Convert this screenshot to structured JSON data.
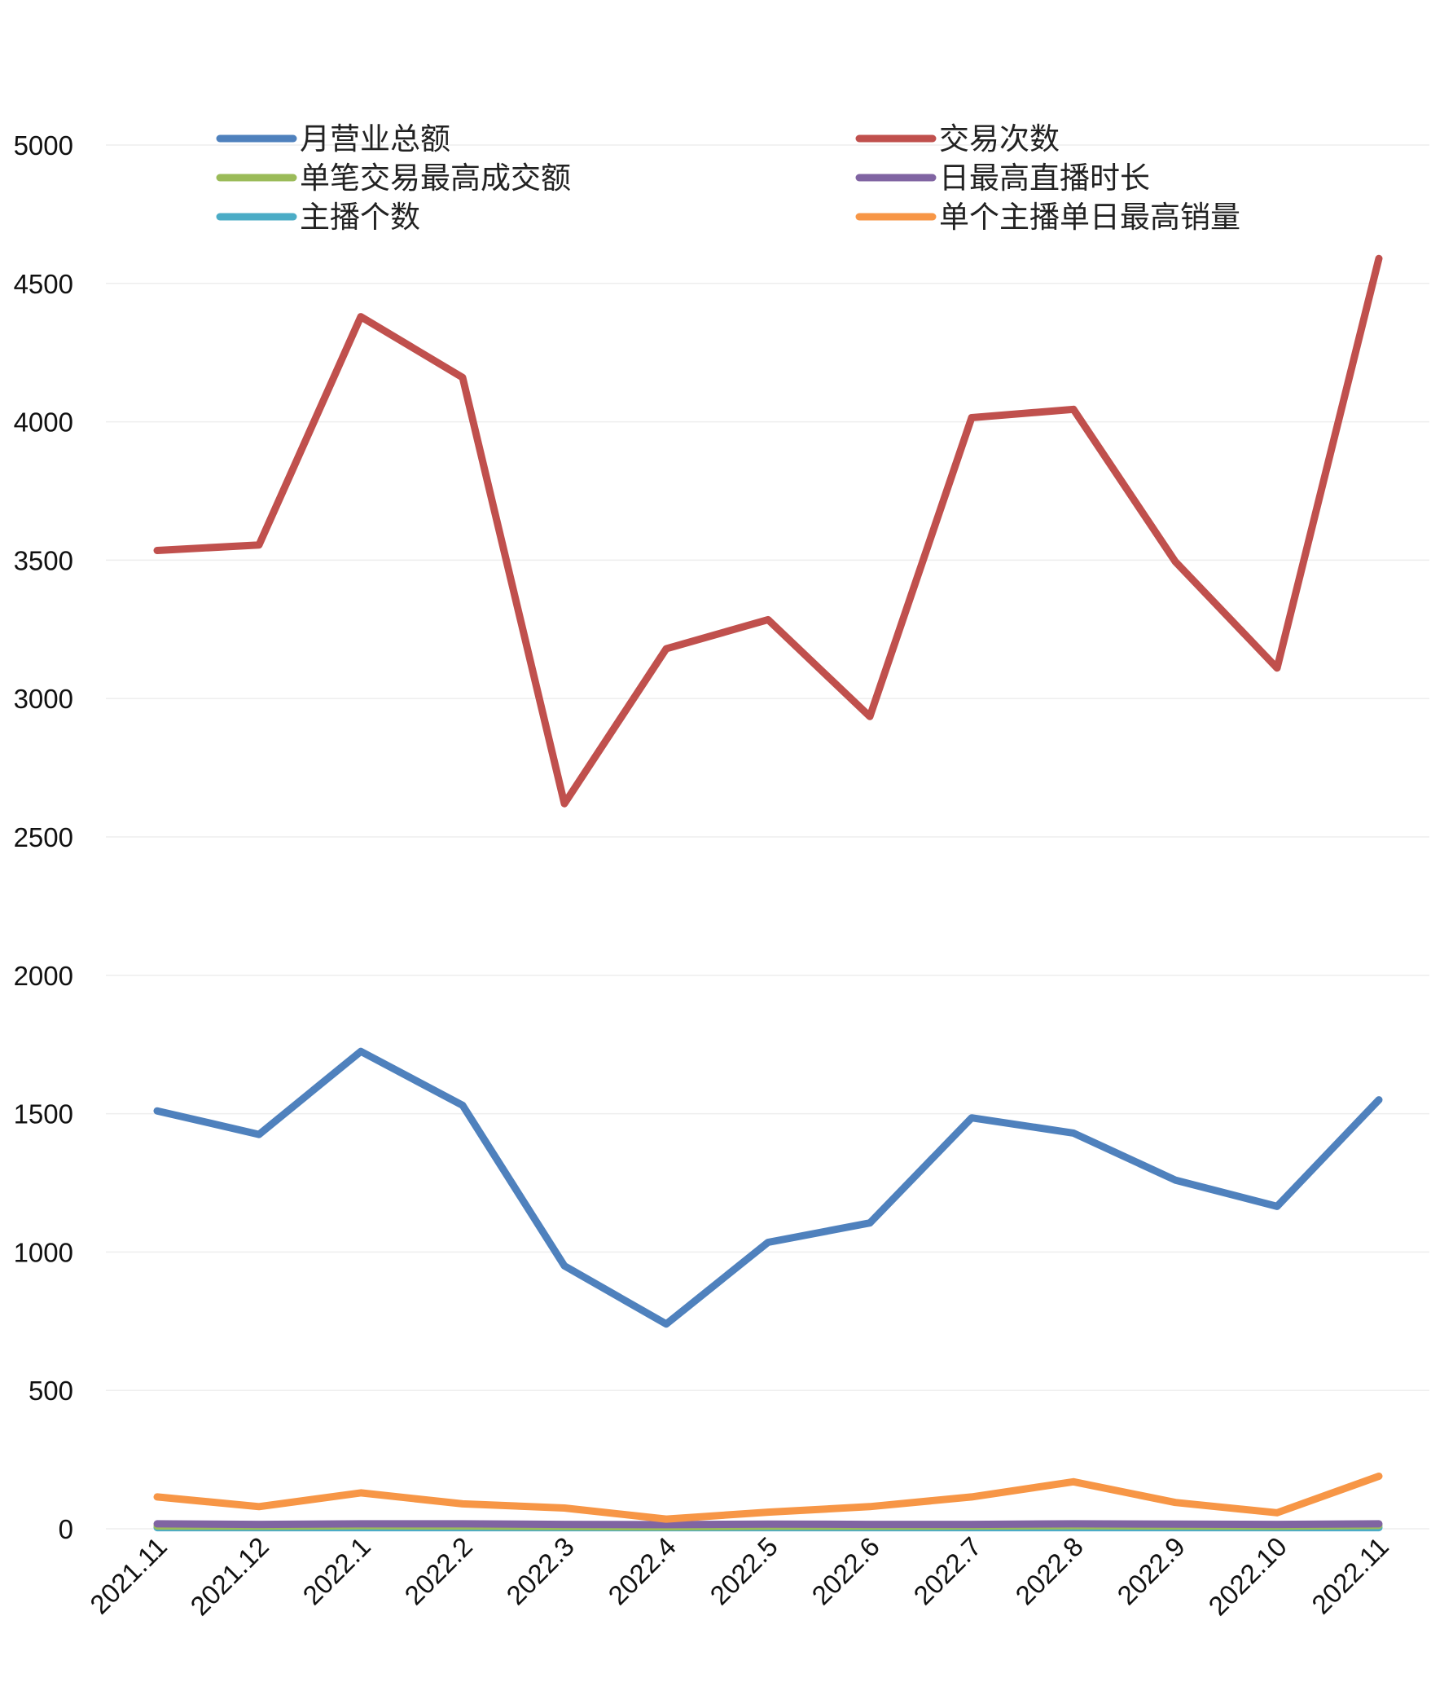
{
  "chart_data": {
    "type": "line",
    "title": "",
    "xlabel": "",
    "ylabel": "",
    "ylim": [
      0,
      5000
    ],
    "yticks": [
      0,
      500,
      1000,
      1500,
      2000,
      2500,
      3000,
      3500,
      4000,
      4500,
      5000
    ],
    "grid": true,
    "legend_position": "top",
    "categories": [
      "2021.11",
      "2021.12",
      "2022.1",
      "2022.2",
      "2022.3",
      "2022.4",
      "2022.5",
      "2022.6",
      "2022.7",
      "2022.8",
      "2022.9",
      "2022.10",
      "2022.11"
    ],
    "series": [
      {
        "name": "月营业总额",
        "color": "#4f81bd",
        "values": [
          1510,
          1425,
          1725,
          1530,
          950,
          740,
          1035,
          1105,
          1485,
          1430,
          1260,
          1165,
          1550
        ]
      },
      {
        "name": "交易次数",
        "color": "#c0504d",
        "values": [
          3535,
          3555,
          4380,
          4160,
          2620,
          3180,
          3285,
          2935,
          4015,
          4045,
          3495,
          3110,
          4590
        ]
      },
      {
        "name": "单笔交易最高成交额",
        "color": "#9bbb59",
        "values": [
          10,
          9,
          11,
          10,
          8,
          7,
          9,
          9,
          10,
          11,
          10,
          9,
          12
        ]
      },
      {
        "name": "日最高直播时长",
        "color": "#8064a2",
        "values": [
          18,
          16,
          18,
          18,
          16,
          15,
          17,
          16,
          16,
          18,
          17,
          16,
          18
        ]
      },
      {
        "name": "主播个数",
        "color": "#4bacc6",
        "values": [
          4,
          4,
          4,
          4,
          4,
          4,
          4,
          4,
          4,
          4,
          4,
          4,
          4
        ]
      },
      {
        "name": "单个主播单日最高销量",
        "color": "#f79646",
        "values": [
          115,
          80,
          130,
          90,
          75,
          35,
          60,
          80,
          115,
          170,
          95,
          58,
          190
        ]
      }
    ]
  }
}
